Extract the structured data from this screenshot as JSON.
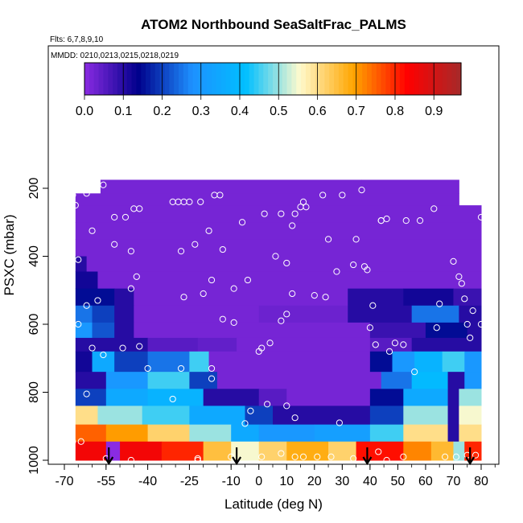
{
  "chart_data": {
    "type": "heatmap",
    "title": "ATOM2 Northbound SeaSaltFrac_PALMS",
    "flights_note": "Flts: 6,7,8,9,10",
    "dates_note": "MMDD: 0210,0213,0215,0218,0219",
    "xlabel": "Latitude (deg N)",
    "ylabel": "PSXC (mbar)",
    "xlim": [
      -68,
      84
    ],
    "ylim": [
      1000,
      0
    ],
    "x_ticks": [
      "-70",
      "-55",
      "-40",
      "-25",
      "-10",
      "0",
      "10",
      "20",
      "30",
      "40",
      "50",
      "60",
      "70",
      "80"
    ],
    "x_tick_values": [
      -70,
      -55,
      -40,
      -25,
      -10,
      0,
      10,
      20,
      30,
      40,
      50,
      60,
      70,
      80
    ],
    "y_ticks": [
      "200",
      "400",
      "600",
      "800",
      "1000"
    ],
    "y_tick_values": [
      200,
      400,
      600,
      800,
      1000
    ],
    "colorbar": {
      "range": [
        0.0,
        0.97
      ],
      "tick_labels": [
        "0.0",
        "0.1",
        "0.2",
        "0.3",
        "0.4",
        "0.5",
        "0.6",
        "0.7",
        "0.8",
        "0.9"
      ],
      "tick_values": [
        0.0,
        0.1,
        0.2,
        0.3,
        0.4,
        0.5,
        0.6,
        0.7,
        0.8,
        0.9
      ],
      "colors": [
        "#8a2be2",
        "#00008b",
        "#1e90ff",
        "#00bfff",
        "#fffacd",
        "#ffa500",
        "#ff0000",
        "#a52a2a"
      ]
    },
    "grid": false,
    "arrows_at_latitude": [
      -54,
      -8,
      39,
      76
    ],
    "bands": [
      {
        "p_top": 175,
        "p_bottom": 215,
        "segments": [
          [
            -57,
            37,
            0.02
          ],
          [
            37,
            72,
            0.02
          ]
        ]
      },
      {
        "p_top": 215,
        "p_bottom": 250,
        "segments": [
          [
            -66,
            72,
            0.02
          ]
        ]
      },
      {
        "p_top": 250,
        "p_bottom": 300,
        "segments": [
          [
            -66,
            80,
            0.02
          ]
        ]
      },
      {
        "p_top": 300,
        "p_bottom": 350,
        "segments": [
          [
            -66,
            80,
            0.02
          ]
        ]
      },
      {
        "p_top": 350,
        "p_bottom": 400,
        "segments": [
          [
            -66,
            80,
            0.02
          ]
        ]
      },
      {
        "p_top": 400,
        "p_bottom": 445,
        "segments": [
          [
            -66,
            -62,
            0.1
          ],
          [
            -62,
            80,
            0.02
          ]
        ]
      },
      {
        "p_top": 445,
        "p_bottom": 495,
        "segments": [
          [
            -66,
            -58,
            0.12
          ],
          [
            -58,
            80,
            0.02
          ]
        ]
      },
      {
        "p_top": 495,
        "p_bottom": 545,
        "segments": [
          [
            -66,
            -52,
            0.15
          ],
          [
            -52,
            -45,
            0.1
          ],
          [
            -45,
            32,
            0.02
          ],
          [
            32,
            52,
            0.1
          ],
          [
            52,
            70,
            0.12
          ],
          [
            70,
            80,
            0.08
          ]
        ]
      },
      {
        "p_top": 545,
        "p_bottom": 595,
        "segments": [
          [
            -66,
            -60,
            0.25
          ],
          [
            -60,
            -52,
            0.2
          ],
          [
            -52,
            -45,
            0.1
          ],
          [
            -45,
            0,
            0.02
          ],
          [
            0,
            32,
            0.03
          ],
          [
            32,
            55,
            0.1
          ],
          [
            55,
            72,
            0.25
          ],
          [
            72,
            80,
            0.1
          ]
        ]
      },
      {
        "p_top": 595,
        "p_bottom": 640,
        "segments": [
          [
            -66,
            -60,
            0.3
          ],
          [
            -60,
            -52,
            0.22
          ],
          [
            -52,
            -45,
            0.1
          ],
          [
            -45,
            40,
            0.02
          ],
          [
            40,
            60,
            0.08
          ],
          [
            60,
            75,
            0.15
          ],
          [
            75,
            80,
            0.1
          ]
        ]
      },
      {
        "p_top": 640,
        "p_bottom": 680,
        "segments": [
          [
            -66,
            -40,
            0.1
          ],
          [
            -40,
            -22,
            0.05
          ],
          [
            -22,
            -8,
            0.04
          ],
          [
            -8,
            40,
            0.02
          ],
          [
            40,
            55,
            0.05
          ],
          [
            55,
            80,
            0.1
          ]
        ]
      },
      {
        "p_top": 680,
        "p_bottom": 740,
        "segments": [
          [
            -66,
            -60,
            0.12
          ],
          [
            -60,
            -52,
            0.35
          ],
          [
            -52,
            -40,
            0.2
          ],
          [
            -40,
            -25,
            0.25
          ],
          [
            -25,
            -18,
            0.45
          ],
          [
            -18,
            40,
            0.02
          ],
          [
            40,
            48,
            0.15
          ],
          [
            48,
            56,
            0.3
          ],
          [
            56,
            66,
            0.38
          ],
          [
            66,
            74,
            0.45
          ],
          [
            74,
            80,
            0.3
          ]
        ]
      },
      {
        "p_top": 740,
        "p_bottom": 790,
        "segments": [
          [
            -66,
            -55,
            0.1
          ],
          [
            -55,
            -40,
            0.3
          ],
          [
            -40,
            -25,
            0.45
          ],
          [
            -25,
            -15,
            0.2
          ],
          [
            -15,
            44,
            0.02
          ],
          [
            44,
            55,
            0.25
          ],
          [
            55,
            68,
            0.4
          ],
          [
            68,
            74,
            0.1
          ],
          [
            74,
            80,
            0.3
          ]
        ]
      },
      {
        "p_top": 790,
        "p_bottom": 840,
        "segments": [
          [
            -66,
            -55,
            0.2
          ],
          [
            -55,
            -40,
            0.35
          ],
          [
            -40,
            -20,
            0.38
          ],
          [
            -20,
            0,
            0.1
          ],
          [
            0,
            10,
            0.05
          ],
          [
            10,
            40,
            0.02
          ],
          [
            40,
            52,
            0.15
          ],
          [
            52,
            68,
            0.35
          ],
          [
            68,
            72,
            0.1
          ],
          [
            72,
            80,
            0.5
          ]
        ]
      },
      {
        "p_top": 840,
        "p_bottom": 895,
        "segments": [
          [
            -66,
            -58,
            0.6
          ],
          [
            -58,
            -42,
            0.5
          ],
          [
            -42,
            -25,
            0.45
          ],
          [
            -25,
            -5,
            0.35
          ],
          [
            -5,
            5,
            0.2
          ],
          [
            5,
            40,
            0.1
          ],
          [
            40,
            52,
            0.2
          ],
          [
            52,
            68,
            0.5
          ],
          [
            68,
            72,
            0.1
          ],
          [
            72,
            80,
            0.55
          ]
        ]
      },
      {
        "p_top": 895,
        "p_bottom": 945,
        "segments": [
          [
            -66,
            -55,
            0.75
          ],
          [
            -55,
            -40,
            0.7
          ],
          [
            -40,
            -25,
            0.62
          ],
          [
            -25,
            -10,
            0.5
          ],
          [
            -10,
            0,
            0.35
          ],
          [
            0,
            20,
            0.3
          ],
          [
            20,
            40,
            0.32
          ],
          [
            40,
            52,
            0.45
          ],
          [
            52,
            68,
            0.6
          ],
          [
            68,
            72,
            0.1
          ],
          [
            72,
            80,
            0.6
          ]
        ]
      },
      {
        "p_top": 945,
        "p_bottom": 1000,
        "segments": [
          [
            -66,
            -55,
            0.85
          ],
          [
            -55,
            -50,
            0.0
          ],
          [
            -50,
            -35,
            0.85
          ],
          [
            -35,
            -20,
            0.8
          ],
          [
            -20,
            -10,
            0.65
          ],
          [
            -10,
            0,
            0.55
          ],
          [
            0,
            10,
            0.62
          ],
          [
            10,
            25,
            0.68
          ],
          [
            25,
            35,
            0.62
          ],
          [
            35,
            52,
            0.82
          ],
          [
            52,
            62,
            0.72
          ],
          [
            62,
            70,
            0.66
          ],
          [
            70,
            74,
            0.5
          ],
          [
            74,
            80,
            0.8
          ]
        ]
      }
    ],
    "points": [
      [
        -67,
        220
      ],
      [
        -66,
        250
      ],
      [
        -62,
        215
      ],
      [
        -60,
        200
      ],
      [
        -56,
        190
      ],
      [
        -60,
        325
      ],
      [
        -65,
        410
      ],
      [
        -52,
        285
      ],
      [
        -48,
        285
      ],
      [
        -45,
        260
      ],
      [
        -43,
        260
      ],
      [
        -52,
        365
      ],
      [
        -46,
        385
      ],
      [
        -44,
        460
      ],
      [
        -46,
        495
      ],
      [
        -58,
        530
      ],
      [
        -62,
        545
      ],
      [
        -65,
        600
      ],
      [
        -60,
        670
      ],
      [
        -56,
        690
      ],
      [
        -49,
        670
      ],
      [
        -43,
        665
      ],
      [
        -40,
        730
      ],
      [
        -31,
        240
      ],
      [
        -29,
        240
      ],
      [
        -27,
        240
      ],
      [
        -25,
        240
      ],
      [
        -21,
        240
      ],
      [
        -16,
        220
      ],
      [
        -14,
        220
      ],
      [
        -18,
        325
      ],
      [
        -23,
        365
      ],
      [
        -28,
        385
      ],
      [
        -27,
        520
      ],
      [
        -17,
        470
      ],
      [
        -20,
        510
      ],
      [
        -9,
        495
      ],
      [
        -13,
        380
      ],
      [
        -6,
        300
      ],
      [
        -4,
        470
      ],
      [
        2,
        275
      ],
      [
        8,
        275
      ],
      [
        12,
        310
      ],
      [
        15,
        255
      ],
      [
        16,
        240
      ],
      [
        17,
        255
      ],
      [
        13,
        275
      ],
      [
        10,
        420
      ],
      [
        6,
        400
      ],
      [
        12,
        510
      ],
      [
        10,
        570
      ],
      [
        8,
        590
      ],
      [
        20,
        515
      ],
      [
        24,
        520
      ],
      [
        23,
        220
      ],
      [
        30,
        220
      ],
      [
        35,
        350
      ],
      [
        37,
        205
      ],
      [
        25,
        350
      ],
      [
        28,
        445
      ],
      [
        34,
        425
      ],
      [
        38,
        430
      ],
      [
        39,
        440
      ],
      [
        41,
        545
      ],
      [
        40,
        610
      ],
      [
        44,
        295
      ],
      [
        44,
        295
      ],
      [
        46,
        290
      ],
      [
        53,
        295
      ],
      [
        58,
        295
      ],
      [
        63,
        260
      ],
      [
        70,
        415
      ],
      [
        72,
        460
      ],
      [
        73,
        480
      ],
      [
        74,
        525
      ],
      [
        75,
        600
      ],
      [
        77,
        560
      ],
      [
        80,
        285
      ],
      [
        83,
        565
      ],
      [
        80,
        600
      ],
      [
        76,
        640
      ],
      [
        42,
        660
      ],
      [
        47,
        680
      ],
      [
        49,
        655
      ],
      [
        52,
        660
      ],
      [
        56,
        740
      ],
      [
        65,
        540
      ],
      [
        64,
        610
      ],
      [
        -31,
        820
      ],
      [
        -13,
        585
      ],
      [
        -9,
        595
      ],
      [
        0,
        680
      ],
      [
        1,
        670
      ],
      [
        4,
        655
      ],
      [
        3,
        835
      ],
      [
        -17,
        730
      ],
      [
        -28,
        730
      ],
      [
        -17,
        760
      ],
      [
        -62,
        805
      ],
      [
        -67,
        945
      ],
      [
        -64,
        945
      ],
      [
        -5,
        892
      ],
      [
        13,
        875
      ],
      [
        10,
        840
      ],
      [
        -3,
        855
      ],
      [
        -22,
        995
      ],
      [
        -10,
        990
      ],
      [
        1,
        990
      ],
      [
        8,
        980
      ],
      [
        13,
        990
      ],
      [
        16,
        990
      ],
      [
        21,
        990
      ],
      [
        26,
        990
      ],
      [
        34,
        995
      ],
      [
        52,
        990
      ],
      [
        71,
        990
      ],
      [
        75,
        985
      ],
      [
        29,
        890
      ],
      [
        46,
        1000
      ],
      [
        -55,
        995
      ],
      [
        -22,
        1000
      ],
      [
        -46,
        1000
      ],
      [
        67,
        990
      ],
      [
        78,
        985
      ],
      [
        43,
        975
      ]
    ]
  }
}
